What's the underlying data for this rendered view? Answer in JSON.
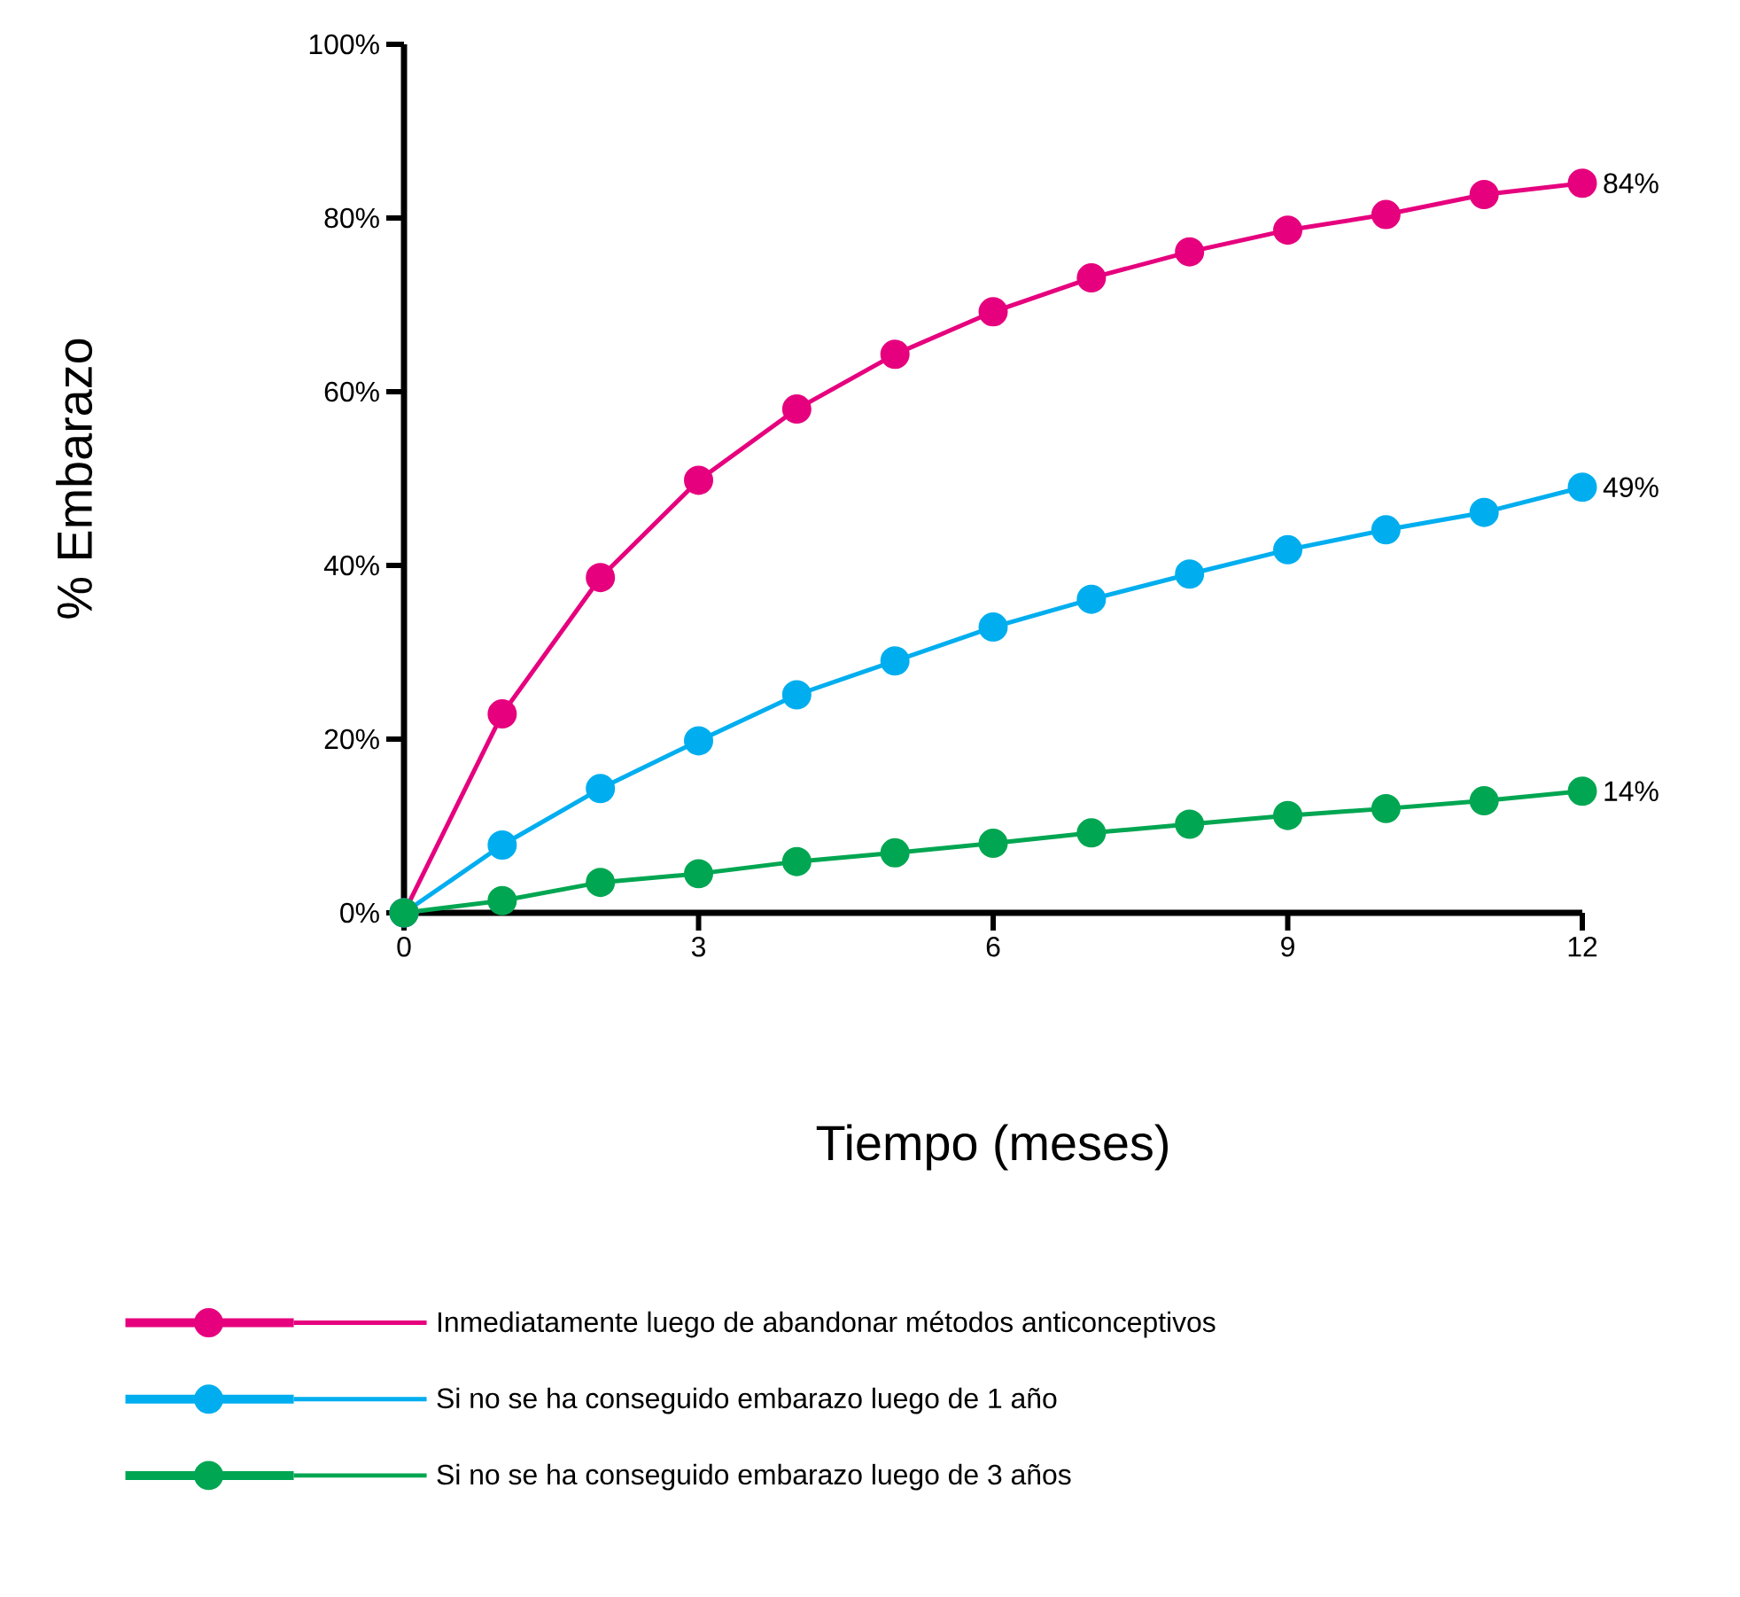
{
  "chart_data": {
    "type": "line",
    "xlabel": "Tiempo (meses)",
    "ylabel": "% Embarazo",
    "x": [
      0,
      1,
      2,
      3,
      4,
      5,
      6,
      7,
      8,
      9,
      10,
      11,
      12
    ],
    "series": [
      {
        "name": "Inmediatamente luego de abandonar métodos anticonceptivos",
        "color": "#e6007e",
        "values": [
          0,
          22.9,
          38.6,
          49.8,
          58,
          64.3,
          69.2,
          73.1,
          76.1,
          78.6,
          80.4,
          82.7,
          84
        ],
        "value_labels": [
          null,
          null,
          null,
          null,
          null,
          null,
          null,
          null,
          null,
          null,
          null,
          null,
          "84%"
        ]
      },
      {
        "name": "Si no se ha conseguido embarazo luego de 1 año",
        "color": "#00aeef",
        "values": [
          0,
          7.8,
          14.3,
          19.8,
          25.1,
          29,
          32.9,
          36.1,
          39,
          41.8,
          44.1,
          46.1,
          49
        ],
        "value_labels": [
          null,
          null,
          null,
          null,
          null,
          null,
          null,
          null,
          null,
          null,
          null,
          null,
          "49%"
        ]
      },
      {
        "name": "Si no se ha conseguido embarazo luego de 3 años",
        "color": "#00a651",
        "values": [
          0,
          1.4,
          3.5,
          4.5,
          5.9,
          6.9,
          8,
          9.2,
          10.2,
          11.2,
          12,
          12.9,
          14
        ],
        "value_labels": [
          null,
          null,
          null,
          null,
          null,
          null,
          null,
          null,
          null,
          null,
          null,
          null,
          "14%"
        ]
      }
    ],
    "xlim": [
      0,
      12
    ],
    "ylim": [
      0,
      100
    ],
    "xticks": [
      0,
      3,
      6,
      9,
      12
    ],
    "yticks": [
      {
        "value": 0,
        "label": "0%"
      },
      {
        "value": 20,
        "label": "20%"
      },
      {
        "value": 40,
        "label": "40%"
      },
      {
        "value": 60,
        "label": "60%"
      },
      {
        "value": 80,
        "label": "80%"
      },
      {
        "value": 100,
        "label": "100%"
      }
    ],
    "grid": false,
    "legend": "bottom",
    "marker": "circle",
    "line_style": "solid"
  }
}
